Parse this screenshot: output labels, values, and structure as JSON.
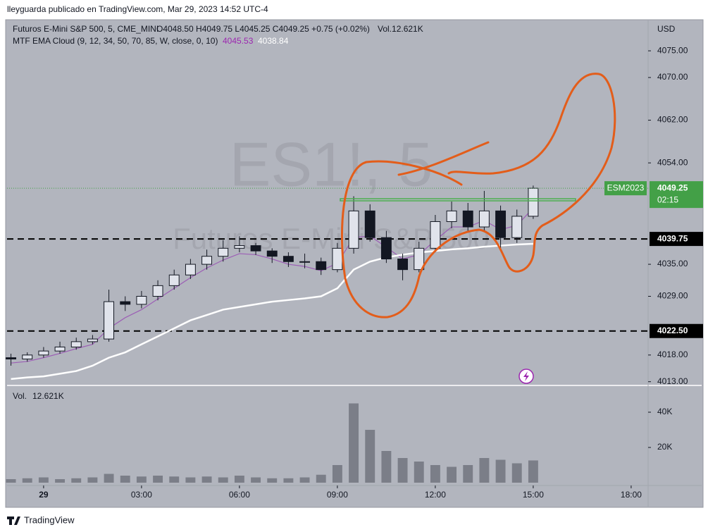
{
  "header": {
    "text": "lleyguarda publicado en TradingView.com, Mar 29, 2023 14:52 UTC-4",
    "footer": "TradingView"
  },
  "chart_data": {
    "type": "candlestick",
    "legend_symbol": "Futuros E-Mini S&P 500, 5, CME_MINI",
    "legend_ohlc": "O4048.50 H4049.75 L4045.25 C4049.25 +0.75 (+0.02%)",
    "legend_vol": "Vol.12.621K",
    "indicator_name": "MTF EMA Cloud (9, 12, 34, 50, 70, 85, W, close, 0, 10)",
    "currency": "USD",
    "watermark": "ES1!, 5",
    "watermark_sub": "Futuros E-Mini S&P 500",
    "symbol_tag": "ESM2023",
    "countdown": "02:15",
    "up_color": "#e0e3eb",
    "down_color": "#131722",
    "tag_color": "#43a047",
    "xlim": [
      -1.12,
      18.52
    ],
    "xticks": [
      {
        "value": 0,
        "label": "29"
      },
      {
        "value": 3,
        "label": "03:00"
      },
      {
        "value": 6,
        "label": "06:00"
      },
      {
        "value": 9,
        "label": "09:00"
      },
      {
        "value": 12,
        "label": "12:00"
      },
      {
        "value": 15,
        "label": "15:00"
      },
      {
        "value": 18,
        "label": "18:00"
      }
    ],
    "ylim": [
      4012.3,
      4079.9
    ],
    "yticks": [
      {
        "value": 4075,
        "label": "4075.00"
      },
      {
        "value": 4070,
        "label": "4070.00"
      },
      {
        "value": 4062,
        "label": "4062.00"
      },
      {
        "value": 4054,
        "label": "4054.00"
      },
      {
        "value": 4035,
        "label": "4035.00"
      },
      {
        "value": 4029,
        "label": "4029.00"
      },
      {
        "value": 4018,
        "label": "4018.00"
      },
      {
        "value": 4013,
        "label": "4013.00"
      }
    ],
    "x": [
      -1,
      -0.5,
      0,
      0.5,
      1,
      1.5,
      2,
      2.5,
      3,
      3.5,
      4,
      4.5,
      5,
      5.5,
      6,
      6.5,
      7,
      7.5,
      8,
      8.5,
      9,
      9.5,
      10,
      10.5,
      11,
      11.5,
      12,
      12.5,
      13,
      13.5,
      14,
      14.5,
      15
    ],
    "open": [
      4017.5,
      4017.25,
      4018,
      4018.75,
      4019.5,
      4020.5,
      4021,
      4028,
      4027.5,
      4029,
      4031,
      4033,
      4035,
      4036.5,
      4038,
      4038.5,
      4037.5,
      4036.5,
      4035.5,
      4035.5,
      4034,
      4038,
      4045,
      4040,
      4036,
      4034,
      4038,
      4043,
      4045,
      4042,
      4045,
      4040,
      4044
    ],
    "high": [
      4018.25,
      4018.5,
      4019.5,
      4020.5,
      4021.25,
      4021.75,
      4030.25,
      4029,
      4030,
      4032,
      4034,
      4036,
      4037.75,
      4039.5,
      4040.25,
      4039,
      4038,
      4037.25,
      4037,
      4036.25,
      4039,
      4047.75,
      4046.25,
      4041.25,
      4037,
      4039.25,
      4044.25,
      4046.75,
      4046.5,
      4048.75,
      4046,
      4045.25,
      4049.75
    ],
    "low": [
      4016,
      4016.75,
      4017.5,
      4018.25,
      4019,
      4020,
      4020.5,
      4026.25,
      4026.75,
      4028.25,
      4030.25,
      4032.25,
      4034,
      4035.5,
      4037.25,
      4036.75,
      4035.25,
      4034.5,
      4034.25,
      4033,
      4033.5,
      4037,
      4039.25,
      4035.25,
      4032,
      4033.5,
      4037.25,
      4041.75,
      4041.25,
      4041,
      4038,
      4039,
      4043.5
    ],
    "close": [
      4017.25,
      4018,
      4018.75,
      4019.5,
      4020.5,
      4021,
      4028,
      4027.5,
      4029,
      4031,
      4033,
      4035,
      4036.5,
      4038,
      4038.5,
      4037.5,
      4036.5,
      4035.5,
      4035.5,
      4034,
      4038,
      4045,
      4040,
      4036,
      4034,
      4038,
      4043,
      4045,
      4042,
      4045,
      4040,
      4044,
      4049.25
    ],
    "ema_lines": [
      {
        "color": "#9c5fb5",
        "values": [
          4016.5,
          4016.8,
          4017.5,
          4018.3,
          4019.2,
          4020,
          4023,
          4025,
          4026.5,
          4028.5,
          4030.5,
          4032.5,
          4034.3,
          4035.8,
          4037,
          4036.8,
          4036,
          4035,
          4034.6,
          4033.8,
          4035.2,
          4040,
          4040.3,
          4038.2,
          4036,
          4036.8,
          4039.5,
          4042,
          4042,
          4043.2,
          4041.5,
          4042.3,
          4045.53
        ]
      },
      {
        "color": "#ffffff",
        "values": [
          4013.5,
          4013.8,
          4014,
          4014.5,
          4015,
          4016,
          4017.5,
          4018.5,
          4020,
          4021.5,
          4023,
          4024.5,
          4025.5,
          4026.5,
          4027,
          4027.5,
          4028,
          4028.3,
          4028.6,
          4029,
          4030.5,
          4034,
          4035.5,
          4036.3,
          4036.8,
          4037.2,
          4037.5,
          4037.8,
          4038,
          4038.3,
          4038.5,
          4038.7,
          4038.84
        ]
      }
    ],
    "levels": [
      4039.75,
      {
        "value": 4022.5,
        "label": "4022.50"
      }
    ],
    "volume_title": "Vol.",
    "volume_label": "12.621K",
    "volume": [
      2000,
      2500,
      3000,
      2000,
      2500,
      3000,
      5000,
      4000,
      3500,
      4000,
      3500,
      3000,
      3500,
      3000,
      4000,
      3000,
      2500,
      2500,
      3000,
      4500,
      10000,
      45000,
      30000,
      18000,
      14000,
      12000,
      10000,
      9000,
      10000,
      14000,
      13000,
      11000,
      12621
    ],
    "vlim": [
      0,
      50000
    ],
    "vticks": [
      {
        "value": 20000,
        "label": "20K"
      },
      {
        "value": 40000,
        "label": "40K"
      }
    ]
  }
}
